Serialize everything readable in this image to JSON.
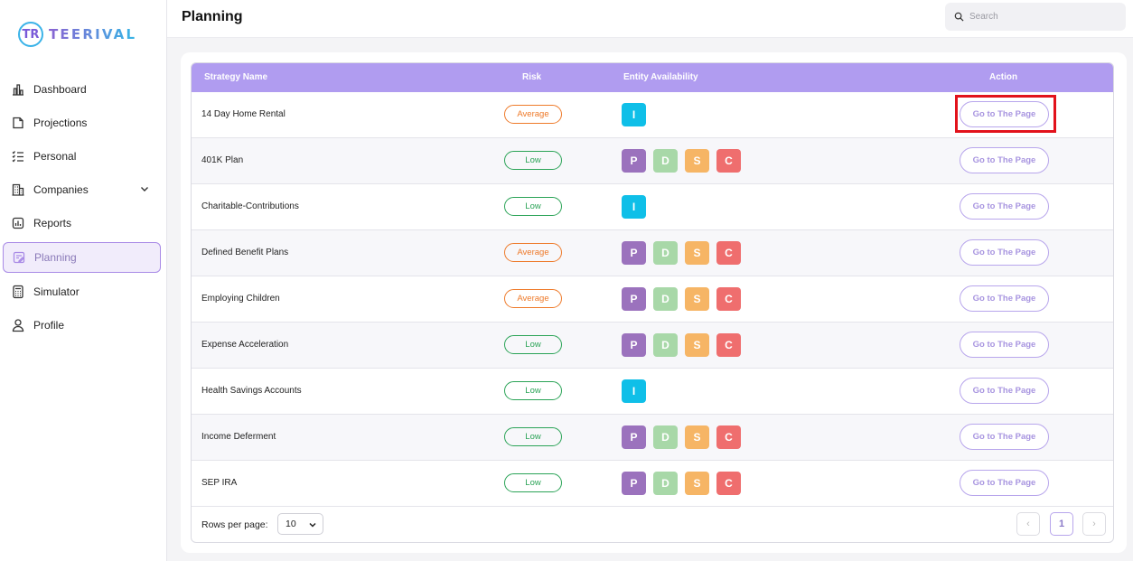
{
  "brand": {
    "logo_mark": "TR",
    "name": "TEERIVAL"
  },
  "sidebar": {
    "items": [
      {
        "label": "Dashboard",
        "icon": "bar-chart-icon"
      },
      {
        "label": "Projections",
        "icon": "pie-chart-icon"
      },
      {
        "label": "Personal",
        "icon": "checklist-icon"
      },
      {
        "label": "Companies",
        "icon": "building-icon"
      },
      {
        "label": "Reports",
        "icon": "report-icon"
      },
      {
        "label": "Planning",
        "icon": "planning-icon",
        "active": true
      },
      {
        "label": "Simulator",
        "icon": "calculator-icon"
      },
      {
        "label": "Profile",
        "icon": "user-icon"
      }
    ]
  },
  "header": {
    "title": "Planning",
    "search_placeholder": "Search"
  },
  "table": {
    "columns": [
      "Strategy Name",
      "Risk",
      "Entity Availability",
      "Action"
    ],
    "rows": [
      {
        "name": "14 Day Home Rental",
        "risk": "Average",
        "entities": [
          "I"
        ],
        "action": "Go to The Page"
      },
      {
        "name": "401K Plan",
        "risk": "Low",
        "entities": [
          "P",
          "D",
          "S",
          "C"
        ],
        "action": "Go to The Page"
      },
      {
        "name": "Charitable-Contributions",
        "risk": "Low",
        "entities": [
          "I"
        ],
        "action": "Go to The Page"
      },
      {
        "name": "Defined Benefit Plans",
        "risk": "Average",
        "entities": [
          "P",
          "D",
          "S",
          "C"
        ],
        "action": "Go to The Page"
      },
      {
        "name": "Employing Children",
        "risk": "Average",
        "entities": [
          "P",
          "D",
          "S",
          "C"
        ],
        "action": "Go to The Page"
      },
      {
        "name": "Expense Acceleration",
        "risk": "Low",
        "entities": [
          "P",
          "D",
          "S",
          "C"
        ],
        "action": "Go to The Page"
      },
      {
        "name": "Health Savings Accounts",
        "risk": "Low",
        "entities": [
          "I"
        ],
        "action": "Go to The Page"
      },
      {
        "name": "Income Deferment",
        "risk": "Low",
        "entities": [
          "P",
          "D",
          "S",
          "C"
        ],
        "action": "Go to The Page"
      },
      {
        "name": "SEP IRA",
        "risk": "Low",
        "entities": [
          "P",
          "D",
          "S",
          "C"
        ],
        "action": "Go to The Page"
      }
    ]
  },
  "entity_colors": {
    "I": "#0fbfe8",
    "P": "#9b72bd",
    "D": "#a8d8a8",
    "S": "#f6b565",
    "C": "#ef6e6e"
  },
  "pagination": {
    "rows_per_page_label": "Rows per page:",
    "rows_per_page": "10",
    "prev": "‹",
    "current_page": "1",
    "next": "›"
  },
  "colors": {
    "header_bg": "#b09cf0",
    "accent": "#a98be6",
    "highlight": "#e2121b"
  }
}
